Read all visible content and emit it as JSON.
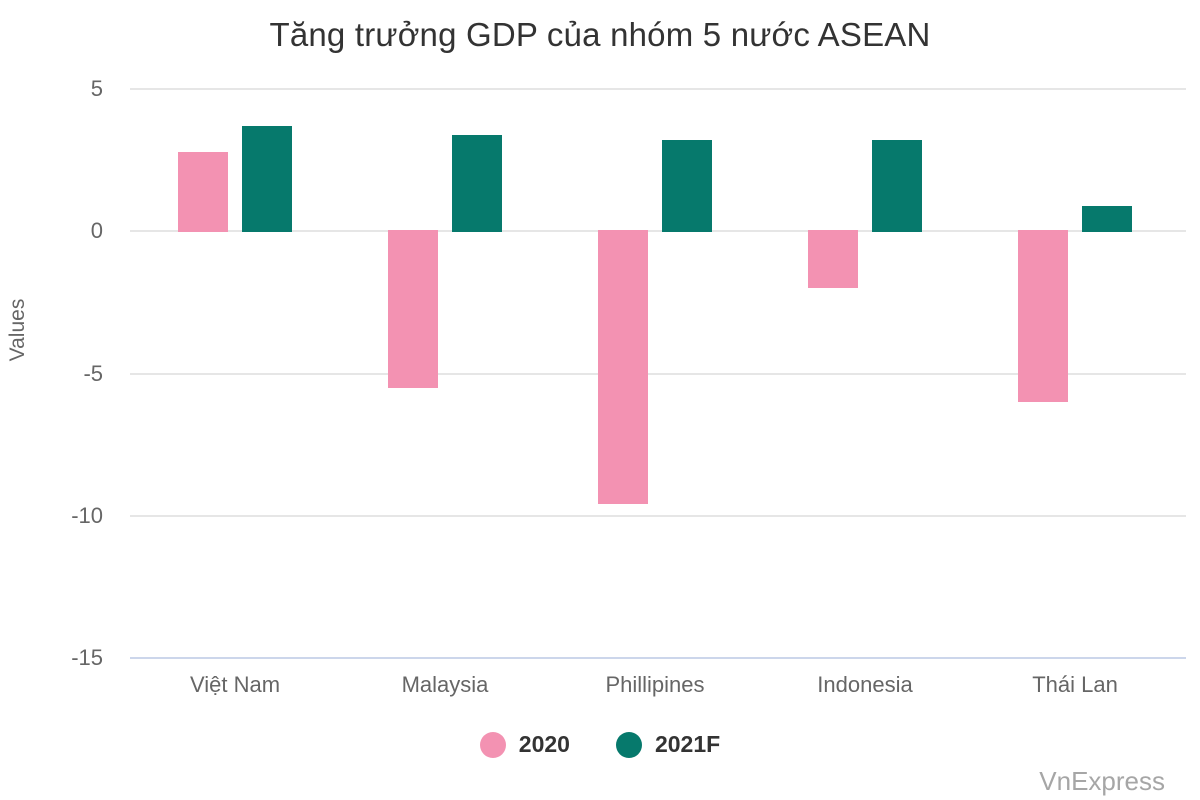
{
  "chart_data": {
    "type": "bar",
    "title": "Tăng trưởng GDP của nhóm 5 nước ASEAN",
    "xlabel": "",
    "ylabel": "Values",
    "categories": [
      "Việt Nam",
      "Malaysia",
      "Phillipines",
      "Indonesia",
      "Thái Lan"
    ],
    "series": [
      {
        "name": "2020",
        "color": "#F392B2",
        "values": [
          2.8,
          -5.5,
          -9.6,
          -2.0,
          -6.0
        ]
      },
      {
        "name": "2021F",
        "color": "#06796C",
        "values": [
          3.7,
          3.4,
          3.2,
          3.2,
          0.9
        ]
      }
    ],
    "y_ticks": [
      5,
      0,
      -5,
      -10,
      -15
    ],
    "ylim": [
      -15,
      5
    ],
    "grid": true,
    "legend_position": "bottom"
  },
  "colors": {
    "grid": "#e6e6e6",
    "axis_line": "#ccd6eb",
    "title_text": "#333333",
    "axis_text": "#666666",
    "watermark_text": "#a6a6a6"
  },
  "watermark": {
    "text": "VnExpress"
  }
}
